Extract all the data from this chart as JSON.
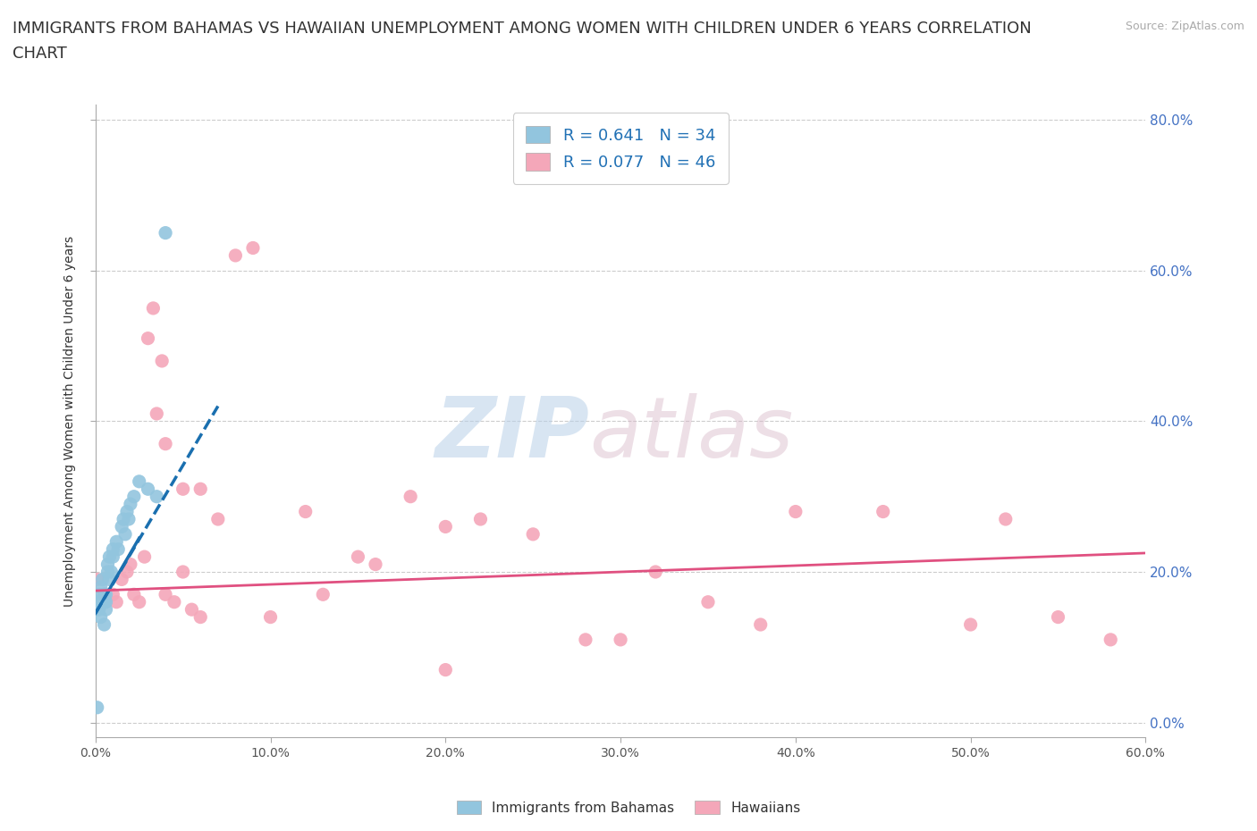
{
  "title_line1": "IMMIGRANTS FROM BAHAMAS VS HAWAIIAN UNEMPLOYMENT AMONG WOMEN WITH CHILDREN UNDER 6 YEARS CORRELATION",
  "title_line2": "CHART",
  "source": "Source: ZipAtlas.com",
  "ylabel": "Unemployment Among Women with Children Under 6 years",
  "legend_label_blue": "Immigrants from Bahamas",
  "legend_label_pink": "Hawaiians",
  "R_blue": "0.641",
  "N_blue": "34",
  "R_pink": "0.077",
  "N_pink": "46",
  "xlim": [
    0.0,
    0.6
  ],
  "ylim": [
    -0.02,
    0.82
  ],
  "xticks": [
    0.0,
    0.1,
    0.2,
    0.3,
    0.4,
    0.5,
    0.6
  ],
  "yticks": [
    0.0,
    0.2,
    0.4,
    0.6,
    0.8
  ],
  "ytick_labels_right": [
    "0.0%",
    "20.0%",
    "40.0%",
    "60.0%",
    "80.0%"
  ],
  "xtick_labels": [
    "0.0%",
    "10.0%",
    "20.0%",
    "30.0%",
    "40.0%",
    "50.0%",
    "60.0%"
  ],
  "color_blue": "#92c5de",
  "color_pink": "#f4a7b9",
  "color_trendline_blue": "#1a6faf",
  "color_trendline_pink": "#e05080",
  "blue_x": [
    0.001,
    0.002,
    0.002,
    0.003,
    0.003,
    0.004,
    0.004,
    0.005,
    0.005,
    0.005,
    0.006,
    0.006,
    0.006,
    0.007,
    0.007,
    0.008,
    0.008,
    0.009,
    0.01,
    0.01,
    0.012,
    0.013,
    0.015,
    0.016,
    0.017,
    0.018,
    0.019,
    0.02,
    0.022,
    0.025,
    0.03,
    0.035,
    0.04,
    0.001
  ],
  "blue_y": [
    0.16,
    0.17,
    0.15,
    0.18,
    0.14,
    0.19,
    0.16,
    0.17,
    0.13,
    0.16,
    0.17,
    0.16,
    0.15,
    0.21,
    0.2,
    0.22,
    0.19,
    0.2,
    0.23,
    0.22,
    0.24,
    0.23,
    0.26,
    0.27,
    0.25,
    0.28,
    0.27,
    0.29,
    0.3,
    0.32,
    0.31,
    0.3,
    0.65,
    0.02
  ],
  "pink_x": [
    0.001,
    0.005,
    0.01,
    0.012,
    0.015,
    0.018,
    0.02,
    0.022,
    0.025,
    0.028,
    0.03,
    0.033,
    0.035,
    0.038,
    0.04,
    0.045,
    0.05,
    0.055,
    0.06,
    0.07,
    0.08,
    0.09,
    0.1,
    0.12,
    0.13,
    0.15,
    0.16,
    0.18,
    0.2,
    0.22,
    0.25,
    0.28,
    0.3,
    0.32,
    0.35,
    0.38,
    0.4,
    0.45,
    0.5,
    0.52,
    0.55,
    0.58,
    0.04,
    0.05,
    0.06,
    0.2
  ],
  "pink_y": [
    0.19,
    0.17,
    0.17,
    0.16,
    0.19,
    0.2,
    0.21,
    0.17,
    0.16,
    0.22,
    0.51,
    0.55,
    0.41,
    0.48,
    0.17,
    0.16,
    0.2,
    0.15,
    0.14,
    0.27,
    0.62,
    0.63,
    0.14,
    0.28,
    0.17,
    0.22,
    0.21,
    0.3,
    0.26,
    0.27,
    0.25,
    0.11,
    0.11,
    0.2,
    0.16,
    0.13,
    0.28,
    0.28,
    0.13,
    0.27,
    0.14,
    0.11,
    0.37,
    0.31,
    0.31,
    0.07
  ],
  "trendline_blue_x0": 0.0,
  "trendline_blue_x1": 0.07,
  "trendline_pink_x0": 0.0,
  "trendline_pink_x1": 0.6,
  "trendline_blue_y0": 0.145,
  "trendline_blue_y1": 0.42,
  "trendline_pink_y0": 0.175,
  "trendline_pink_y1": 0.225,
  "watermark_zip": "ZIP",
  "watermark_atlas": "atlas",
  "title_fontsize": 13,
  "axis_fontsize": 10,
  "tick_fontsize": 10
}
